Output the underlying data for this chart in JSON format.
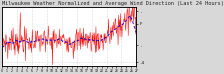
{
  "title": "Milwaukee Weather Normalized and Average Wind Direction (Last 24 Hours)",
  "background_color": "#d8d8d8",
  "plot_bg_color": "#ffffff",
  "red_line_color": "#ff0000",
  "blue_line_color": "#0000cc",
  "grid_color": "#bbbbbb",
  "ylim_min": -1.5,
  "ylim_max": 5.5,
  "num_points": 280,
  "seed": 7,
  "title_fontsize": 3.8,
  "tick_fontsize": 3.0,
  "right_ytick_labels": [
    "-4",
    ".",
    "F",
    "."
  ],
  "right_ytick_positions": [
    -1.0,
    1.0,
    3.5,
    5.0
  ]
}
